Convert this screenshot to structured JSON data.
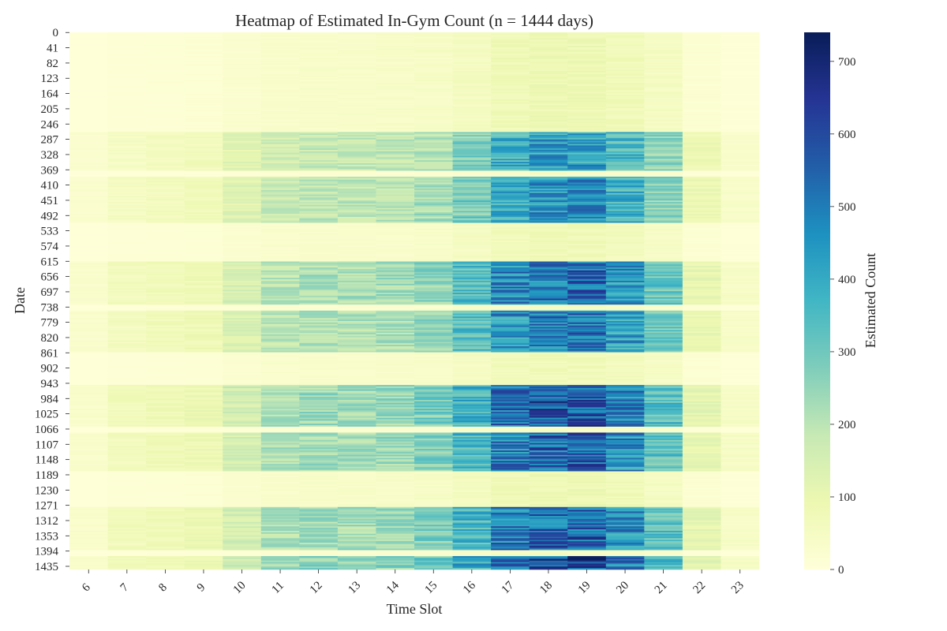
{
  "chart_data": {
    "type": "heatmap",
    "title": "Heatmap of Estimated In-Gym Count (n = 1444 days)",
    "xlabel": "Time Slot",
    "ylabel": "Date",
    "colorbar_label": "Estimated Count",
    "colormap": "YlGnBu",
    "colorbar_range": [
      0,
      740
    ],
    "colorbar_ticks": [
      0,
      100,
      200,
      300,
      400,
      500,
      600,
      700
    ],
    "x": [
      6,
      7,
      8,
      9,
      10,
      11,
      12,
      13,
      14,
      15,
      16,
      17,
      18,
      19,
      20,
      21,
      22,
      23
    ],
    "y_ticks": [
      0,
      41,
      82,
      123,
      164,
      205,
      246,
      287,
      328,
      369,
      410,
      451,
      492,
      533,
      574,
      615,
      656,
      697,
      738,
      779,
      820,
      861,
      902,
      943,
      984,
      1025,
      1066,
      1107,
      1148,
      1189,
      1230,
      1271,
      1312,
      1353,
      1394,
      1435
    ],
    "n_days": 1444,
    "hourly_profile": [
      30,
      60,
      70,
      80,
      140,
      190,
      210,
      210,
      220,
      250,
      330,
      450,
      500,
      500,
      420,
      300,
      100,
      40
    ],
    "period_intensity": [
      {
        "start": 0,
        "end": 265,
        "level": 0.35
      },
      {
        "start": 265,
        "end": 370,
        "level": 0.85
      },
      {
        "start": 370,
        "end": 385,
        "level": 0.15
      },
      {
        "start": 385,
        "end": 510,
        "level": 0.9
      },
      {
        "start": 510,
        "end": 615,
        "level": 0.3
      },
      {
        "start": 615,
        "end": 730,
        "level": 1.05
      },
      {
        "start": 730,
        "end": 745,
        "level": 0.2
      },
      {
        "start": 745,
        "end": 860,
        "level": 1.0
      },
      {
        "start": 860,
        "end": 945,
        "level": 0.3
      },
      {
        "start": 945,
        "end": 1060,
        "level": 1.15
      },
      {
        "start": 1060,
        "end": 1075,
        "level": 0.2
      },
      {
        "start": 1075,
        "end": 1180,
        "level": 1.1
      },
      {
        "start": 1180,
        "end": 1275,
        "level": 0.35
      },
      {
        "start": 1275,
        "end": 1390,
        "level": 1.1
      },
      {
        "start": 1390,
        "end": 1405,
        "level": 0.2
      },
      {
        "start": 1405,
        "end": 1444,
        "level": 1.2
      }
    ]
  }
}
